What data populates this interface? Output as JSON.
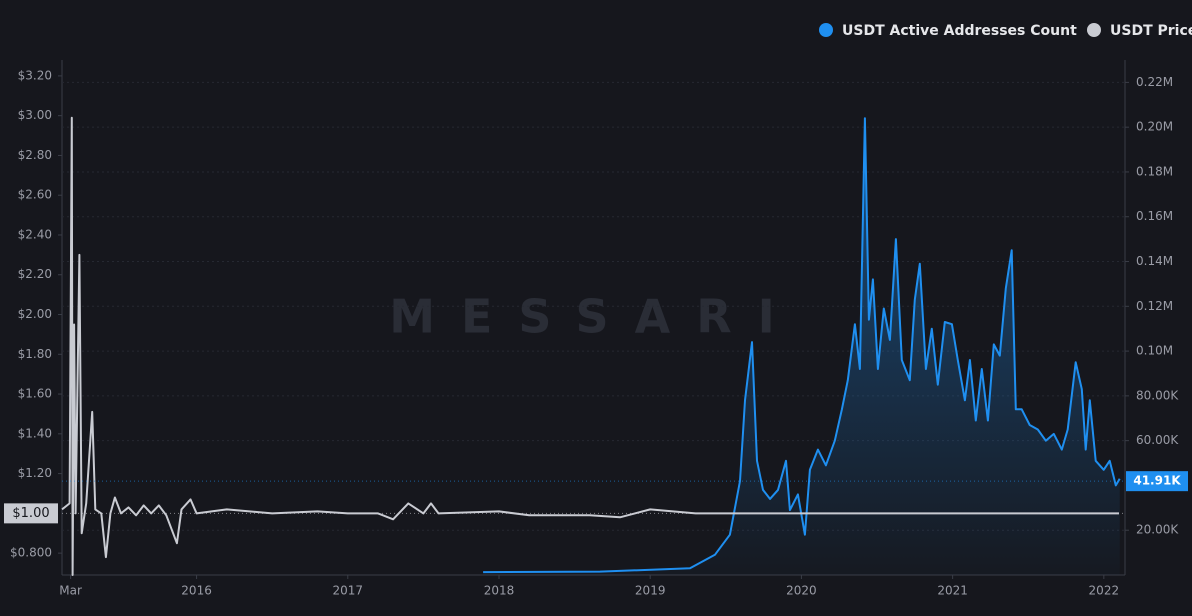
{
  "chart_data": {
    "type": "line",
    "watermark": "MESSARI",
    "xlim": [
      2015.11,
      2022.14
    ],
    "xticks": [
      {
        "value": 2015.167,
        "label": "Mar"
      },
      2016,
      2017,
      2018,
      2019,
      2020,
      2021,
      2022
    ],
    "ylim": [
      0.69,
      3.28
    ],
    "yticks": [
      {
        "value": 0.8,
        "label": "$0.800"
      },
      {
        "value": 1.2,
        "label": "$1.20"
      },
      {
        "value": 1.4,
        "label": "$1.40"
      },
      {
        "value": 1.6,
        "label": "$1.60"
      },
      {
        "value": 1.8,
        "label": "$1.80"
      },
      {
        "value": 2.0,
        "label": "$2.00"
      },
      {
        "value": 2.2,
        "label": "$2.20"
      },
      {
        "value": 2.4,
        "label": "$2.40"
      },
      {
        "value": 2.6,
        "label": "$2.60"
      },
      {
        "value": 2.8,
        "label": "$2.80"
      },
      {
        "value": 3.0,
        "label": "$3.00"
      },
      {
        "value": 3.2,
        "label": "$3.20"
      }
    ],
    "y2lim": [
      0,
      230000
    ],
    "y2ticks": [
      {
        "value": 20000,
        "label": "20.00K"
      },
      {
        "value": 60000,
        "label": "60.00K"
      },
      {
        "value": 80000,
        "label": "80.00K"
      },
      {
        "value": 100000,
        "label": "0.10M"
      },
      {
        "value": 120000,
        "label": "0.12M"
      },
      {
        "value": 140000,
        "label": "0.14M"
      },
      {
        "value": 160000,
        "label": "0.16M"
      },
      {
        "value": 180000,
        "label": "0.18M"
      },
      {
        "value": 200000,
        "label": "0.20M"
      },
      {
        "value": 220000,
        "label": "0.22M"
      }
    ],
    "grid": true,
    "legend": "top-right",
    "current_labels": [
      {
        "axis": "y",
        "value": 1.0,
        "label": "$1.00"
      },
      {
        "axis": "y2",
        "value": 41910,
        "label": "41.91K"
      }
    ],
    "series": [
      {
        "name": "USDT Active Addresses Count",
        "color": "#1f8ff0",
        "axis": "y2",
        "x": [
          2017.895,
          2018.668,
          2019.263,
          2019.428,
          2019.527,
          2019.594,
          2019.627,
          2019.673,
          2019.706,
          2019.746,
          2019.792,
          2019.845,
          2019.898,
          2019.924,
          2019.977,
          2020.023,
          2020.056,
          2020.109,
          2020.162,
          2020.221,
          2020.268,
          2020.307,
          2020.354,
          2020.387,
          2020.42,
          2020.446,
          2020.473,
          2020.506,
          2020.545,
          2020.585,
          2020.625,
          2020.664,
          2020.717,
          2020.75,
          2020.783,
          2020.823,
          2020.862,
          2020.902,
          2020.948,
          2020.995,
          2021.034,
          2021.081,
          2021.114,
          2021.153,
          2021.193,
          2021.233,
          2021.272,
          2021.312,
          2021.352,
          2021.391,
          2021.418,
          2021.457,
          2021.51,
          2021.563,
          2021.616,
          2021.669,
          2021.722,
          2021.761,
          2021.814,
          2021.854,
          2021.88,
          2021.907,
          2021.946,
          2021.999,
          2022.039,
          2022.079,
          2022.105
        ],
        "values": [
          1300,
          1500,
          3000,
          9000,
          18000,
          42000,
          78000,
          104000,
          51000,
          38000,
          34000,
          38000,
          51000,
          29000,
          36000,
          18000,
          47000,
          56000,
          49000,
          60000,
          74000,
          87000,
          112000,
          92000,
          204000,
          114000,
          132000,
          92000,
          119000,
          105000,
          150000,
          96000,
          87000,
          123000,
          139000,
          92000,
          110000,
          85000,
          113000,
          112000,
          96000,
          78000,
          96000,
          69000,
          92000,
          69000,
          103000,
          98000,
          128000,
          145000,
          74000,
          74000,
          67000,
          65000,
          60000,
          63000,
          56000,
          65000,
          95000,
          83000,
          56000,
          78000,
          51000,
          47000,
          51000,
          40000,
          43000
        ]
      },
      {
        "name": "USDT Price",
        "color": "#c9cbd2",
        "axis": "y",
        "x": [
          2015.11,
          2015.16,
          2015.175,
          2015.18,
          2015.19,
          2015.2,
          2015.225,
          2015.24,
          2015.27,
          2015.31,
          2015.33,
          2015.37,
          2015.4,
          2015.43,
          2015.46,
          2015.5,
          2015.55,
          2015.6,
          2015.65,
          2015.7,
          2015.75,
          2015.8,
          2015.87,
          2015.9,
          2015.96,
          2016.0,
          2016.2,
          2016.5,
          2016.8,
          2017.0,
          2017.2,
          2017.3,
          2017.4,
          2017.5,
          2017.55,
          2017.6,
          2018.0,
          2018.2,
          2018.6,
          2018.8,
          2019.0,
          2019.3,
          2019.6,
          2020.0,
          2021.0,
          2022.1
        ],
        "values": [
          1.02,
          1.05,
          2.99,
          0.69,
          1.95,
          1.0,
          2.3,
          0.9,
          1.05,
          1.51,
          1.02,
          1.0,
          0.78,
          1.0,
          1.08,
          1.0,
          1.03,
          0.99,
          1.04,
          1.0,
          1.04,
          0.99,
          0.85,
          1.02,
          1.07,
          1.0,
          1.02,
          1.0,
          1.01,
          1.0,
          1.0,
          0.97,
          1.05,
          1.0,
          1.05,
          1.0,
          1.01,
          0.99,
          0.99,
          0.98,
          1.02,
          1.0,
          1.0,
          1.0,
          1.0,
          1.0
        ]
      }
    ]
  }
}
